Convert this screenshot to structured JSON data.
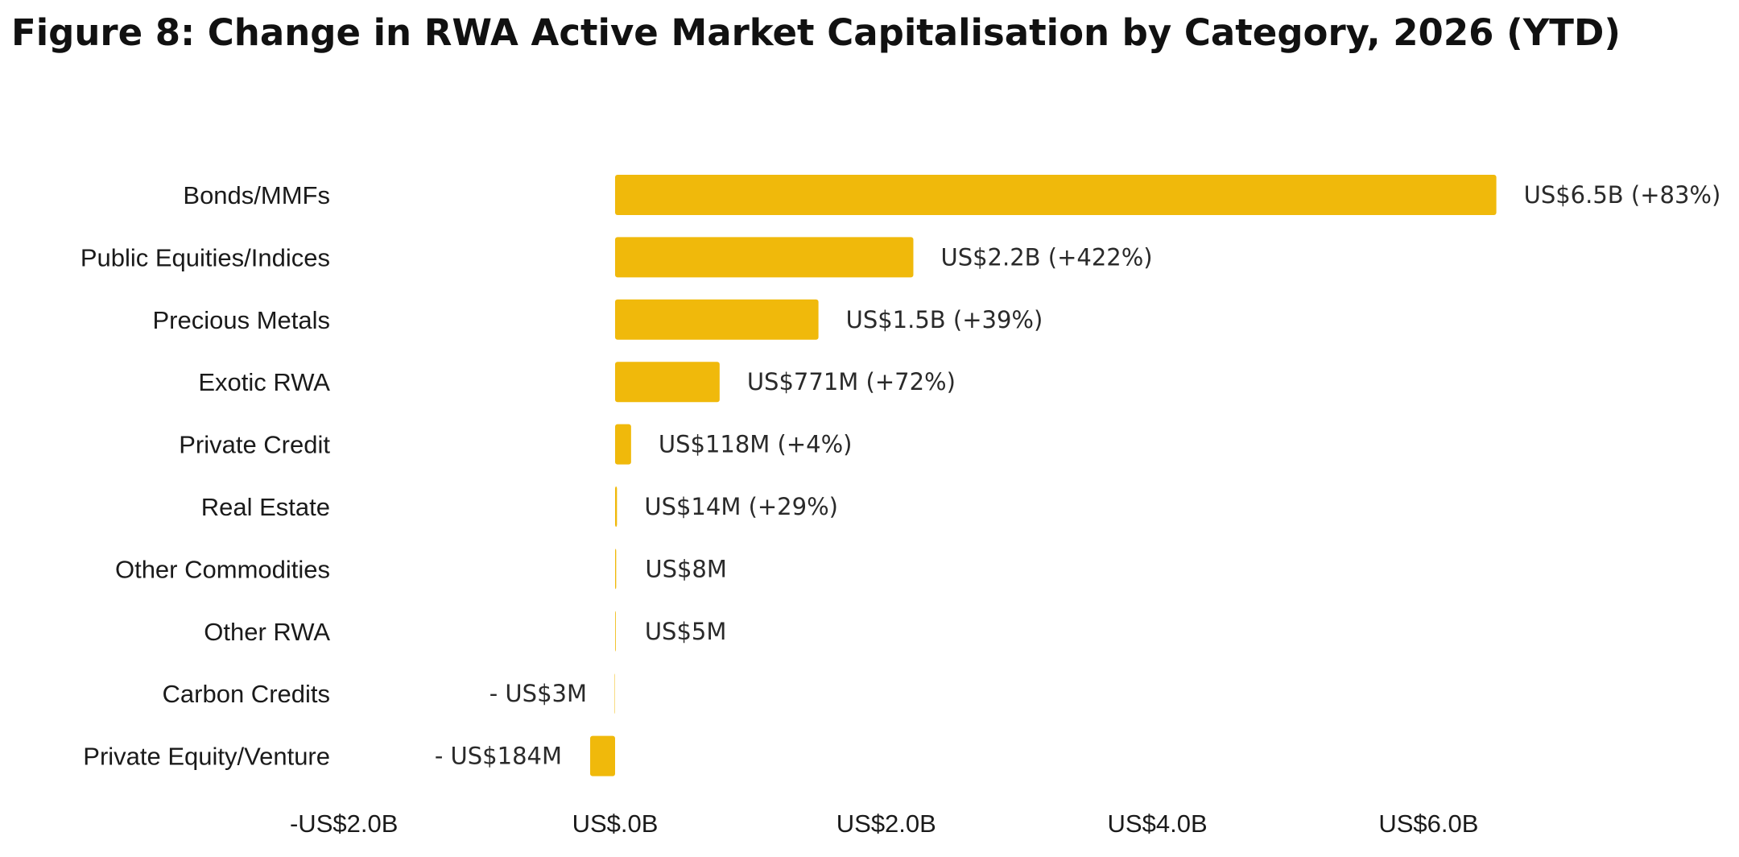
{
  "title": "Figure 8: Change in RWA Active Market Capitalisation by Category, 2026 (YTD)",
  "chart_data": {
    "type": "bar",
    "orientation": "horizontal",
    "title": "Figure 8: Change in RWA Active Market Capitalisation by Category, 2026 (YTD)",
    "xlabel": "",
    "ylabel": "",
    "xlim": [
      -2.0,
      7.8
    ],
    "grid": false,
    "legend": "none",
    "bar_color": "#F0B90B",
    "categories": [
      "Bonds/MMFs",
      "Public Equities/Indices",
      "Precious Metals",
      "Exotic RWA",
      "Private Credit",
      "Real Estate",
      "Other Commodities",
      "Other RWA",
      "Carbon Credits",
      "Private Equity/Venture"
    ],
    "values": [
      6.5,
      2.2,
      1.5,
      0.771,
      0.118,
      0.014,
      0.008,
      0.005,
      -0.003,
      -0.184
    ],
    "value_unit": "US$ billions",
    "data_labels": [
      "US$6.5B (+83%)",
      "US$2.2B (+422%)",
      "US$1.5B (+39%)",
      "US$771M (+72%)",
      "US$118M (+4%)",
      "US$14M (+29%)",
      "US$8M",
      "US$5M",
      "- US$3M",
      "- US$184M"
    ],
    "x_ticks": [
      -2.0,
      0.0,
      2.0,
      4.0,
      6.0
    ],
    "x_tick_labels": [
      "-US$2.0B",
      "US$.0B",
      "US$2.0B",
      "US$4.0B",
      "US$6.0B"
    ]
  }
}
